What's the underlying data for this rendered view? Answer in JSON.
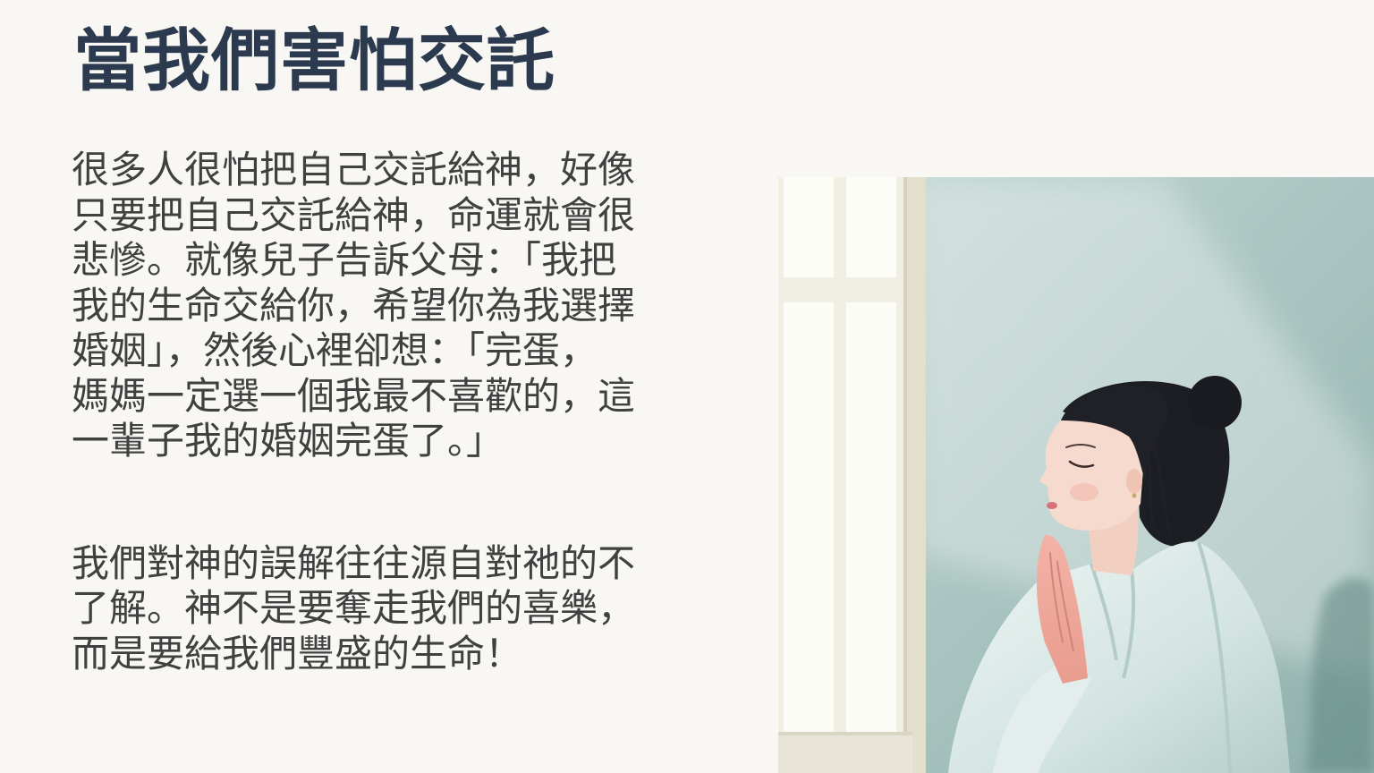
{
  "theme": {
    "background": "#f8f7f3",
    "title": "#2b3a4e",
    "body": "#404040"
  },
  "slide": {
    "title": "當我們害怕交託",
    "paragraphs": [
      {
        "lines": [
          "很多人很怕把自己交託給神，好像",
          "只要把自己交託給神，命運就會很",
          "悲慘。就像兒子告訴父母：「我把",
          "我的生命交給你，希望你為我選擇",
          "婚姻」，然後心裡卻想：「完蛋，",
          "媽媽一定選一個我最不喜歡的，這",
          "一輩子我的婚姻完蛋了。」"
        ]
      },
      {
        "lines": [
          "我們對神的誤解往往源自對祂的不",
          "了解。神不是要奪走我們的喜樂，",
          "而是要給我們豐盛的生命！"
        ]
      }
    ]
  }
}
